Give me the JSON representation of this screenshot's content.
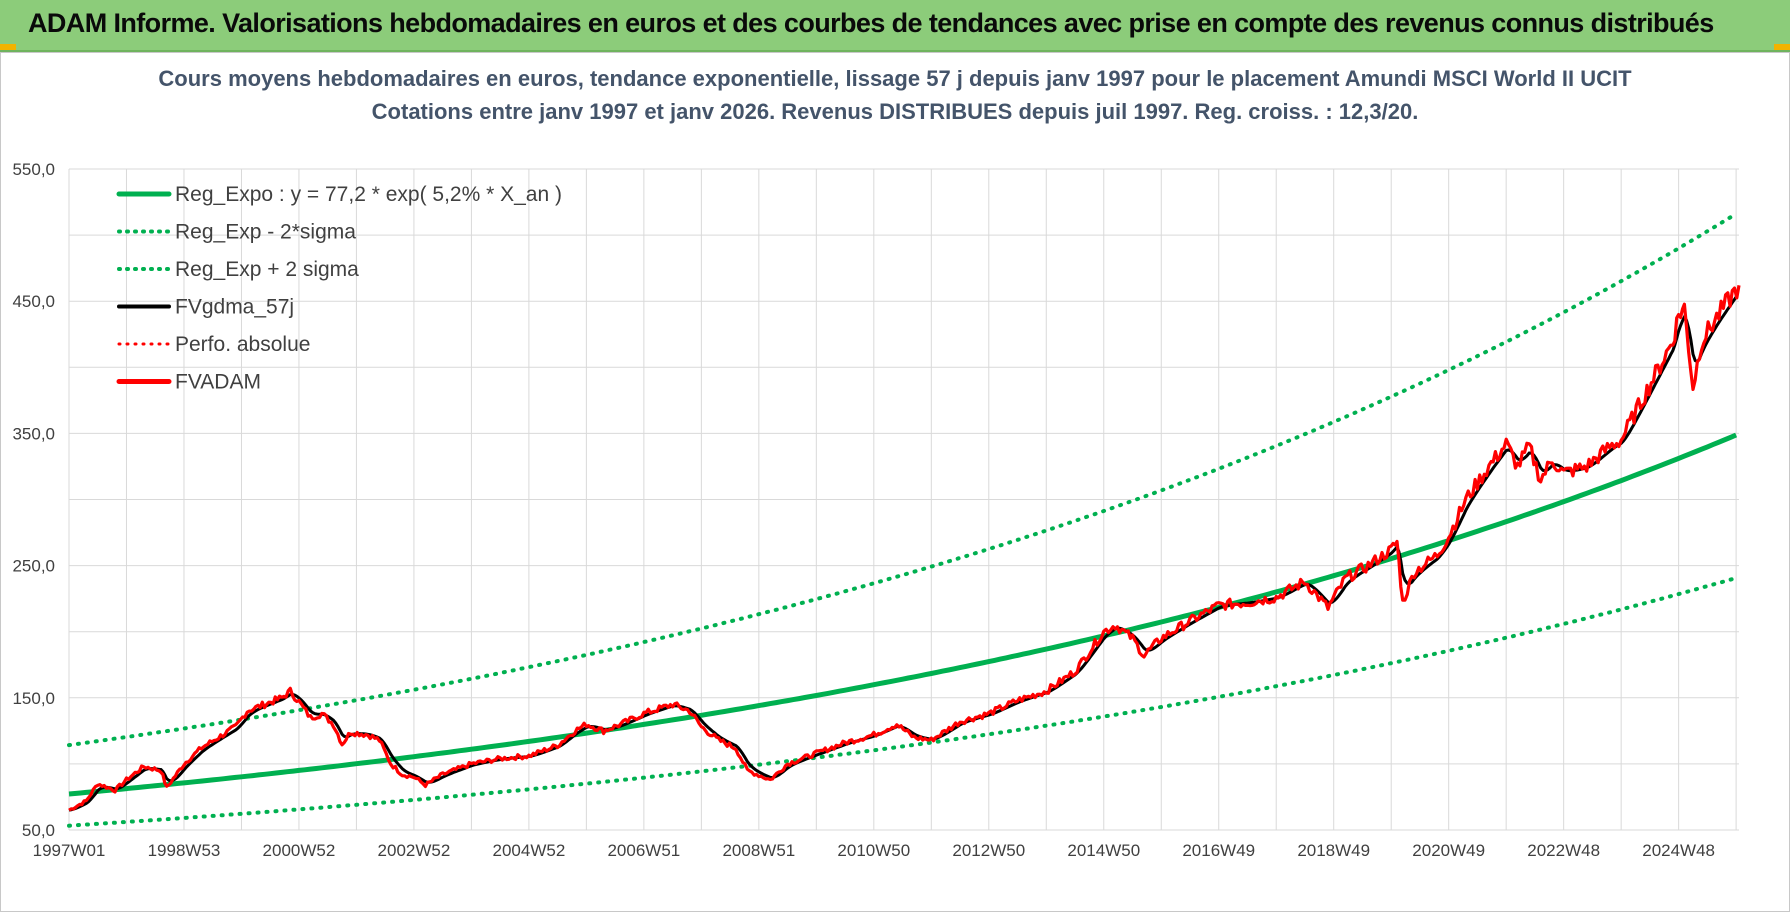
{
  "banner": {
    "title": "ADAM Informe. Valorisations hebdomadaires en euros et des courbes de tendances avec prise en compte des revenus connus distribués"
  },
  "colors": {
    "banner_bg": "#8ccc7a",
    "regression": "#00b050",
    "fvgdma": "#000000",
    "fvadam": "#ff0000",
    "grid": "#d9d9d9",
    "axis_text": "#404040",
    "title_text": "#44546a"
  },
  "chart_data": {
    "type": "line",
    "title_line1": "Cours moyens hebdomadaires en euros, tendance exponentielle, lissage 57 j depuis janv 1997 pour le placement Amundi MSCI World II UCIT",
    "title_line2": "Cotations entre janv 1997 et janv 2026. Revenus DISTRIBUES depuis juil 1997. Reg. croiss. : 12,3/20.",
    "xlabel": "",
    "ylabel": "",
    "ylim": [
      50,
      550
    ],
    "y_ticks": [
      "50,0",
      "150,0",
      "250,0",
      "350,0",
      "450,0",
      "550,0"
    ],
    "y_tick_values": [
      50,
      150,
      250,
      350,
      450,
      550
    ],
    "x_ticks": [
      "1997W01",
      "1998W53",
      "2000W52",
      "2002W52",
      "2004W52",
      "2006W51",
      "2008W51",
      "2010W50",
      "2012W50",
      "2014W50",
      "2016W49",
      "2018W49",
      "2020W49",
      "2022W48",
      "2024W48"
    ],
    "x_tick_years": [
      1997.0,
      1999.0,
      2001.0,
      2003.0,
      2005.0,
      2007.0,
      2009.0,
      2011.0,
      2013.0,
      2015.0,
      2017.0,
      2019.0,
      2021.0,
      2023.0,
      2025.0
    ],
    "xlim_years": [
      1997.0,
      2026.05
    ],
    "grid": true,
    "legend_position": "top-left",
    "legend": [
      {
        "label": "Reg_Expo : y = 77,2 * exp( 5,2% *  X_an )",
        "color": "#00b050",
        "style": "solid",
        "width": 5
      },
      {
        "label": "Reg_Exp - 2*sigma",
        "color": "#00b050",
        "style": "dotted",
        "width": 4
      },
      {
        "label": "Reg_Exp + 2 sigma",
        "color": "#00b050",
        "style": "dotted",
        "width": 4
      },
      {
        "label": "FVgdma_57j",
        "color": "#000000",
        "style": "solid",
        "width": 4
      },
      {
        "label": "Perfo. absolue",
        "color": "#ff0000",
        "style": "dotted",
        "width": 3
      },
      {
        "label": "FVADAM",
        "color": "#ff0000",
        "style": "solid",
        "width": 5
      }
    ],
    "regression": {
      "a": 77.2,
      "rate": 0.052,
      "lower_factor": 0.69,
      "upper_factor": 1.48
    },
    "fvadam_points": [
      [
        1997.0,
        65
      ],
      [
        1997.3,
        72
      ],
      [
        1997.5,
        85
      ],
      [
        1997.8,
        80
      ],
      [
        1998.0,
        88
      ],
      [
        1998.3,
        98
      ],
      [
        1998.6,
        95
      ],
      [
        1998.7,
        82
      ],
      [
        1999.0,
        100
      ],
      [
        1999.3,
        112
      ],
      [
        1999.6,
        120
      ],
      [
        1999.9,
        128
      ],
      [
        2000.1,
        140
      ],
      [
        2000.4,
        145
      ],
      [
        2000.7,
        150
      ],
      [
        2000.85,
        155
      ],
      [
        2001.0,
        147
      ],
      [
        2001.2,
        135
      ],
      [
        2001.4,
        138
      ],
      [
        2001.6,
        130
      ],
      [
        2001.75,
        115
      ],
      [
        2001.9,
        124
      ],
      [
        2002.2,
        122
      ],
      [
        2002.4,
        118
      ],
      [
        2002.6,
        100
      ],
      [
        2002.8,
        92
      ],
      [
        2003.0,
        90
      ],
      [
        2003.2,
        84
      ],
      [
        2003.5,
        92
      ],
      [
        2004.0,
        100
      ],
      [
        2004.5,
        104
      ],
      [
        2005.0,
        106
      ],
      [
        2005.5,
        114
      ],
      [
        2005.8,
        125
      ],
      [
        2006.0,
        130
      ],
      [
        2006.3,
        125
      ],
      [
        2006.6,
        130
      ],
      [
        2007.0,
        138
      ],
      [
        2007.5,
        145
      ],
      [
        2007.8,
        140
      ],
      [
        2008.0,
        128
      ],
      [
        2008.3,
        118
      ],
      [
        2008.6,
        112
      ],
      [
        2008.8,
        95
      ],
      [
        2009.2,
        88
      ],
      [
        2009.5,
        100
      ],
      [
        2010.0,
        108
      ],
      [
        2010.5,
        116
      ],
      [
        2011.0,
        122
      ],
      [
        2011.4,
        130
      ],
      [
        2011.7,
        120
      ],
      [
        2012.0,
        118
      ],
      [
        2012.5,
        132
      ],
      [
        2013.0,
        138
      ],
      [
        2013.5,
        148
      ],
      [
        2014.0,
        155
      ],
      [
        2014.5,
        170
      ],
      [
        2015.0,
        200
      ],
      [
        2015.2,
        205
      ],
      [
        2015.5,
        195
      ],
      [
        2015.7,
        182
      ],
      [
        2016.0,
        195
      ],
      [
        2016.5,
        208
      ],
      [
        2017.0,
        220
      ],
      [
        2017.5,
        222
      ],
      [
        2018.0,
        226
      ],
      [
        2018.5,
        238
      ],
      [
        2018.9,
        218
      ],
      [
        2019.2,
        240
      ],
      [
        2019.6,
        250
      ],
      [
        2020.0,
        262
      ],
      [
        2020.1,
        268
      ],
      [
        2020.2,
        222
      ],
      [
        2020.4,
        245
      ],
      [
        2020.8,
        258
      ],
      [
        2021.0,
        272
      ],
      [
        2021.3,
        300
      ],
      [
        2021.7,
        325
      ],
      [
        2022.0,
        342
      ],
      [
        2022.2,
        325
      ],
      [
        2022.4,
        340
      ],
      [
        2022.6,
        315
      ],
      [
        2022.8,
        330
      ],
      [
        2023.0,
        320
      ],
      [
        2023.4,
        325
      ],
      [
        2023.8,
        340
      ],
      [
        2024.0,
        345
      ],
      [
        2024.3,
        370
      ],
      [
        2024.6,
        395
      ],
      [
        2024.9,
        420
      ],
      [
        2025.0,
        440
      ],
      [
        2025.1,
        445
      ],
      [
        2025.25,
        385
      ],
      [
        2025.4,
        420
      ],
      [
        2025.7,
        440
      ],
      [
        2026.05,
        462
      ]
    ]
  }
}
